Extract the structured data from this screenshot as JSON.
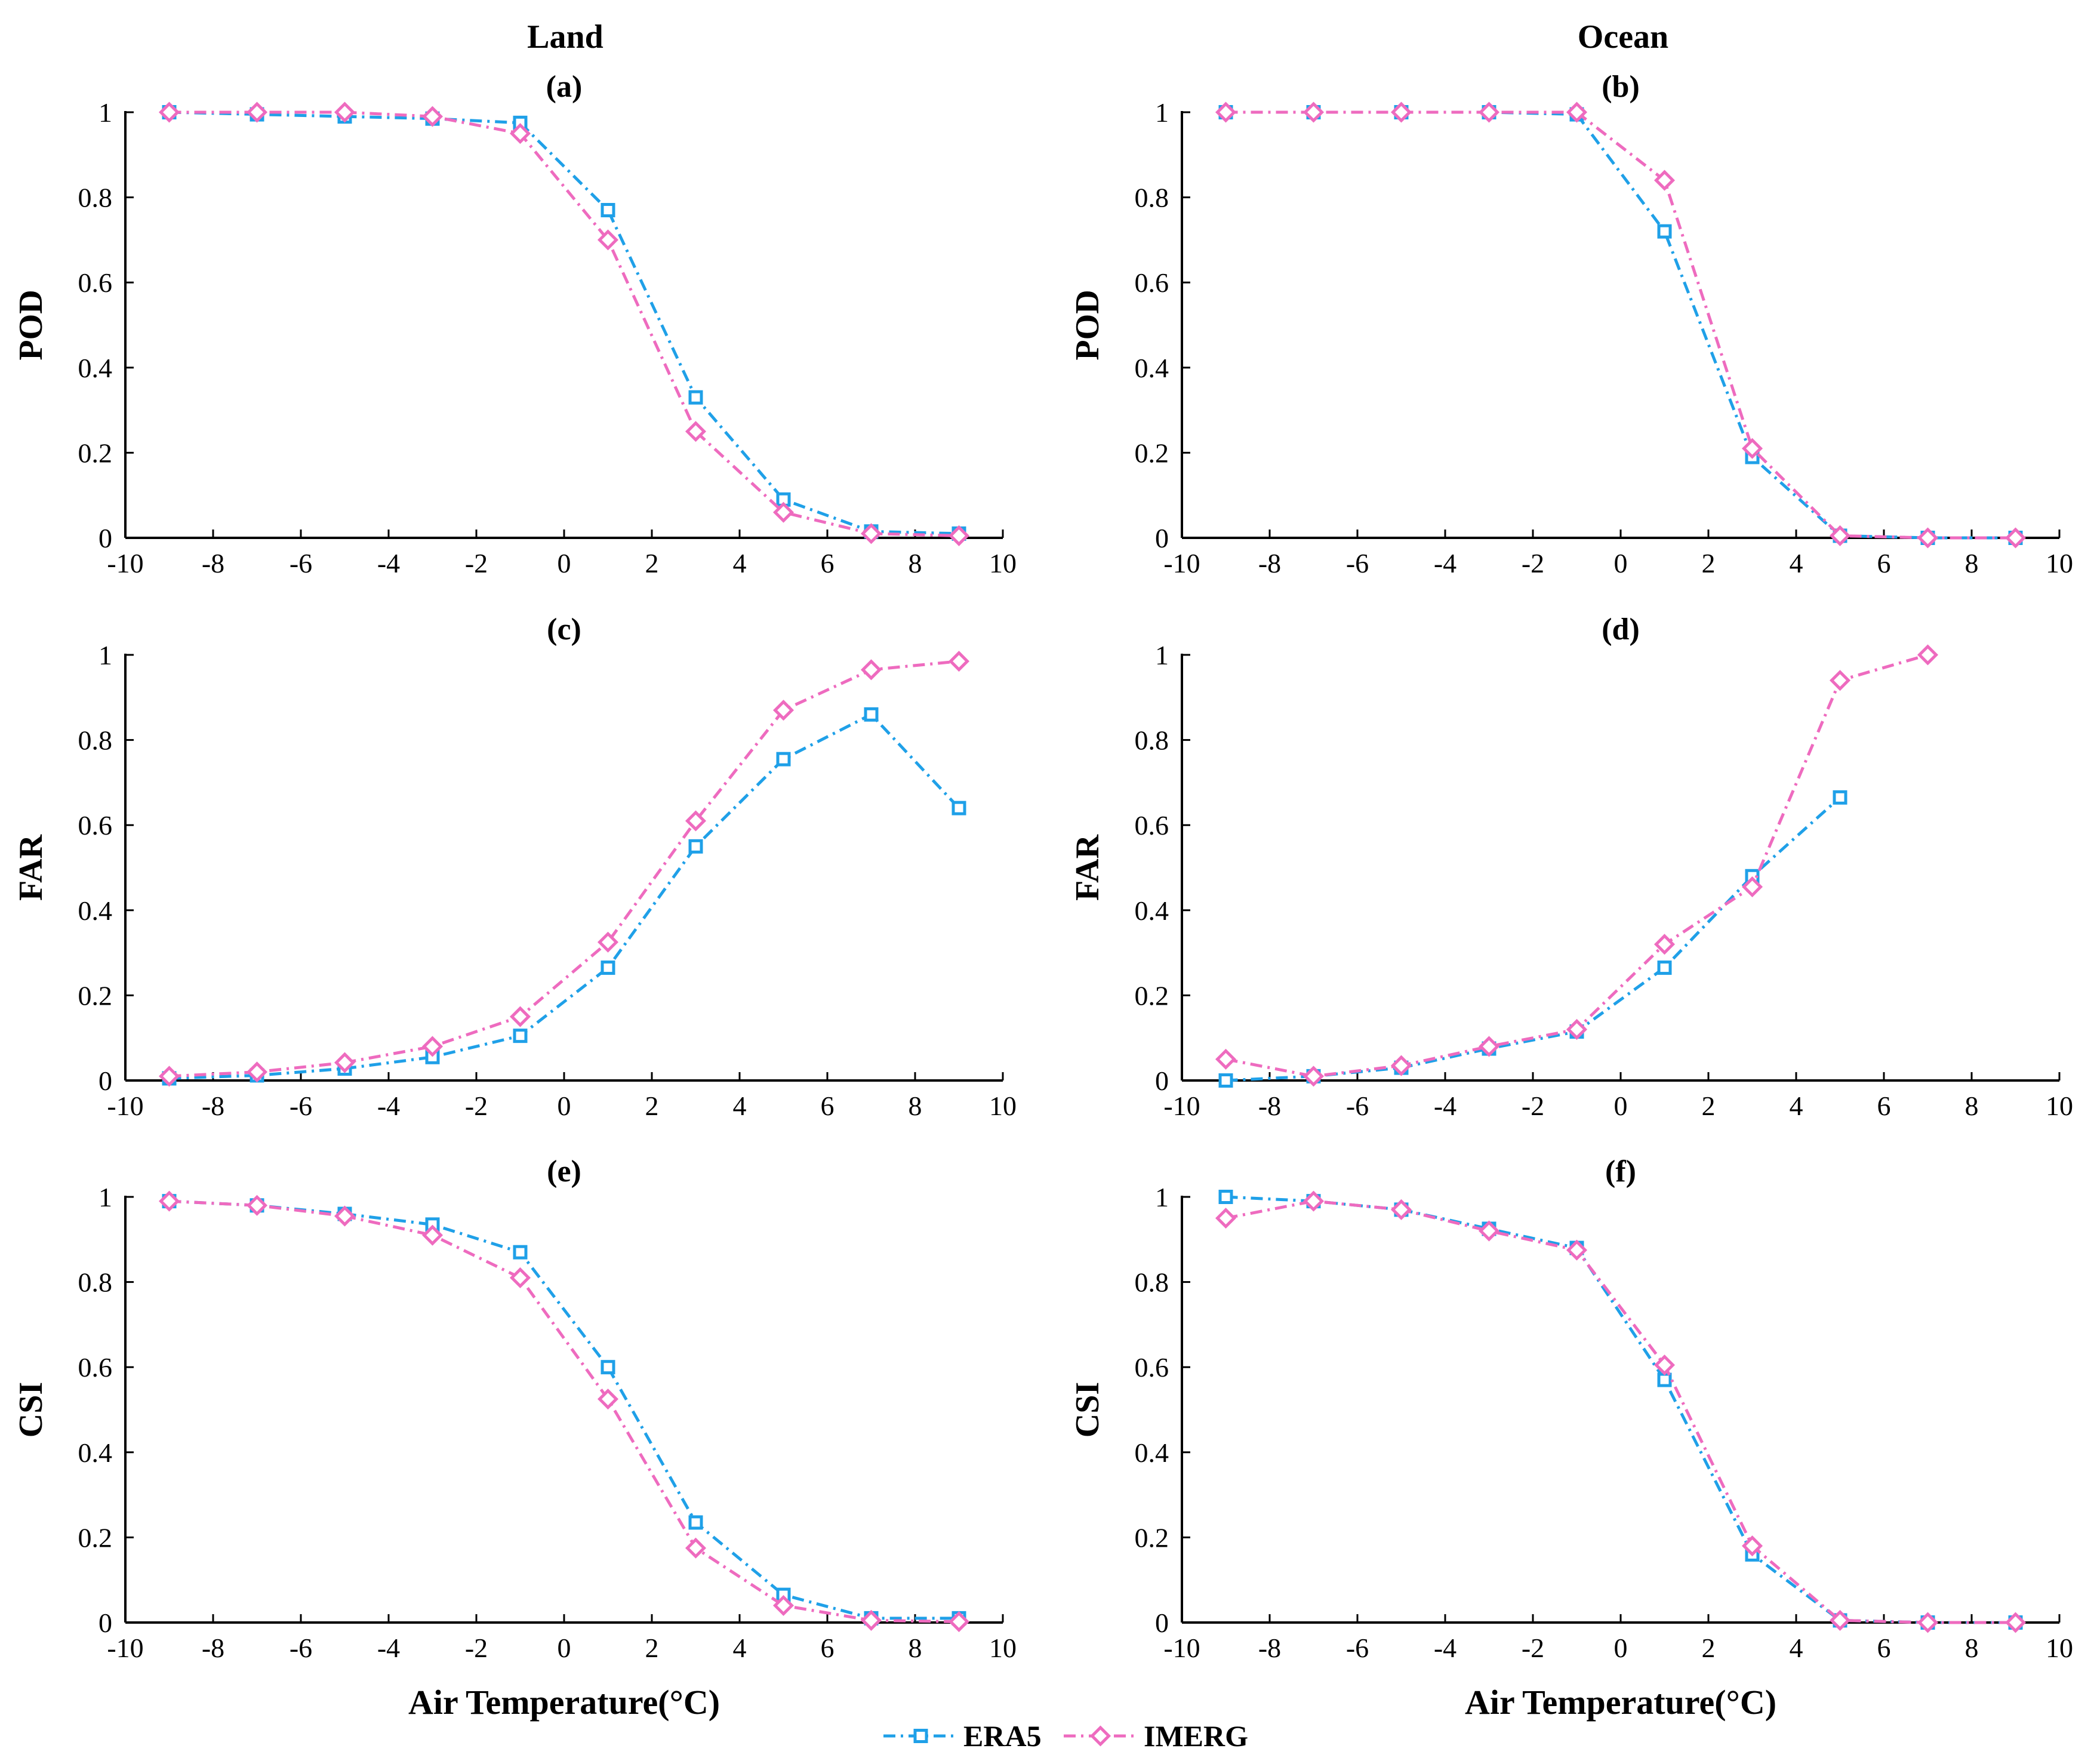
{
  "titles": {
    "land": "Land",
    "ocean": "Ocean"
  },
  "legend": [
    {
      "name": "ERA5",
      "color": "#1FA0E8",
      "marker": "square"
    },
    {
      "name": "IMERG",
      "color": "#EE6BBF",
      "marker": "diamond"
    }
  ],
  "chart_data": [
    {
      "type": "line",
      "panel": "(a)",
      "column": "Land",
      "ylabel": "POD",
      "xlabel": "",
      "xlim": [
        -10,
        10
      ],
      "ylim": [
        0,
        1
      ],
      "xticks": [
        -10,
        -8,
        -6,
        -4,
        -2,
        0,
        2,
        4,
        6,
        8,
        10
      ],
      "yticks": [
        0,
        0.2,
        0.4,
        0.6,
        0.8,
        1
      ],
      "x": [
        -9,
        -7,
        -5,
        -3,
        -1,
        1,
        3,
        5,
        7,
        9
      ],
      "series": [
        {
          "name": "ERA5",
          "values": [
            1.0,
            0.995,
            0.99,
            0.985,
            0.975,
            0.77,
            0.33,
            0.09,
            0.015,
            0.01
          ]
        },
        {
          "name": "IMERG",
          "values": [
            1.0,
            1.0,
            1.0,
            0.99,
            0.95,
            0.7,
            0.25,
            0.06,
            0.01,
            0.005
          ]
        }
      ]
    },
    {
      "type": "line",
      "panel": "(b)",
      "column": "Ocean",
      "ylabel": "POD",
      "xlabel": "",
      "xlim": [
        -10,
        10
      ],
      "ylim": [
        0,
        1
      ],
      "xticks": [
        -10,
        -8,
        -6,
        -4,
        -2,
        0,
        2,
        4,
        6,
        8,
        10
      ],
      "yticks": [
        0,
        0.2,
        0.4,
        0.6,
        0.8,
        1
      ],
      "x": [
        -9,
        -7,
        -5,
        -3,
        -1,
        1,
        3,
        5,
        7,
        9
      ],
      "series": [
        {
          "name": "ERA5",
          "values": [
            1.0,
            1.0,
            1.0,
            1.0,
            0.995,
            0.72,
            0.19,
            0.005,
            0.0,
            0.0
          ]
        },
        {
          "name": "IMERG",
          "values": [
            1.0,
            1.0,
            1.0,
            1.0,
            1.0,
            0.84,
            0.21,
            0.005,
            0.0,
            0.0
          ]
        }
      ]
    },
    {
      "type": "line",
      "panel": "(c)",
      "column": "Land",
      "ylabel": "FAR",
      "xlabel": "",
      "xlim": [
        -10,
        10
      ],
      "ylim": [
        0,
        1
      ],
      "xticks": [
        -10,
        -8,
        -6,
        -4,
        -2,
        0,
        2,
        4,
        6,
        8,
        10
      ],
      "yticks": [
        0,
        0.2,
        0.4,
        0.6,
        0.8,
        1
      ],
      "x": [
        -9,
        -7,
        -5,
        -3,
        -1,
        1,
        3,
        5,
        7,
        9
      ],
      "series": [
        {
          "name": "ERA5",
          "values": [
            0.005,
            0.012,
            0.028,
            0.055,
            0.105,
            0.265,
            0.55,
            0.755,
            0.86,
            0.64
          ]
        },
        {
          "name": "IMERG",
          "values": [
            0.01,
            0.02,
            0.042,
            0.08,
            0.15,
            0.325,
            0.61,
            0.87,
            0.965,
            0.985
          ]
        }
      ]
    },
    {
      "type": "line",
      "panel": "(d)",
      "column": "Ocean",
      "ylabel": "FAR",
      "xlabel": "",
      "xlim": [
        -10,
        10
      ],
      "ylim": [
        0,
        1
      ],
      "xticks": [
        -10,
        -8,
        -6,
        -4,
        -2,
        0,
        2,
        4,
        6,
        8,
        10
      ],
      "yticks": [
        0,
        0.2,
        0.4,
        0.6,
        0.8,
        1
      ],
      "x": [
        -9,
        -7,
        -5,
        -3,
        -1,
        1,
        3,
        5,
        7
      ],
      "series": [
        {
          "name": "ERA5",
          "values": [
            0.0,
            0.01,
            0.03,
            0.075,
            0.115,
            0.265,
            0.48,
            0.665,
            null
          ]
        },
        {
          "name": "IMERG",
          "values": [
            0.05,
            0.01,
            0.035,
            0.08,
            0.12,
            0.32,
            0.455,
            0.94,
            1.0
          ]
        }
      ]
    },
    {
      "type": "line",
      "panel": "(e)",
      "column": "Land",
      "ylabel": "CSI",
      "xlabel": "Air Temperature(°C)",
      "xlim": [
        -10,
        10
      ],
      "ylim": [
        0,
        1
      ],
      "xticks": [
        -10,
        -8,
        -6,
        -4,
        -2,
        0,
        2,
        4,
        6,
        8,
        10
      ],
      "yticks": [
        0,
        0.2,
        0.4,
        0.6,
        0.8,
        1
      ],
      "x": [
        -9,
        -7,
        -5,
        -3,
        -1,
        1,
        3,
        5,
        7,
        9
      ],
      "series": [
        {
          "name": "ERA5",
          "values": [
            0.99,
            0.98,
            0.96,
            0.935,
            0.87,
            0.6,
            0.235,
            0.065,
            0.01,
            0.01
          ]
        },
        {
          "name": "IMERG",
          "values": [
            0.99,
            0.98,
            0.955,
            0.91,
            0.81,
            0.525,
            0.175,
            0.04,
            0.005,
            0.002
          ]
        }
      ]
    },
    {
      "type": "line",
      "panel": "(f)",
      "column": "Ocean",
      "ylabel": "CSI",
      "xlabel": "Air Temperature(°C)",
      "xlim": [
        -10,
        10
      ],
      "ylim": [
        0,
        1
      ],
      "xticks": [
        -10,
        -8,
        -6,
        -4,
        -2,
        0,
        2,
        4,
        6,
        8,
        10
      ],
      "yticks": [
        0,
        0.2,
        0.4,
        0.6,
        0.8,
        1
      ],
      "x": [
        -9,
        -7,
        -5,
        -3,
        -1,
        1,
        3,
        5,
        7,
        9
      ],
      "series": [
        {
          "name": "ERA5",
          "values": [
            1.0,
            0.99,
            0.97,
            0.925,
            0.88,
            0.57,
            0.16,
            0.005,
            0.0,
            0.0
          ]
        },
        {
          "name": "IMERG",
          "values": [
            0.95,
            0.99,
            0.97,
            0.92,
            0.875,
            0.605,
            0.18,
            0.005,
            0.0,
            0.0
          ]
        }
      ]
    }
  ]
}
